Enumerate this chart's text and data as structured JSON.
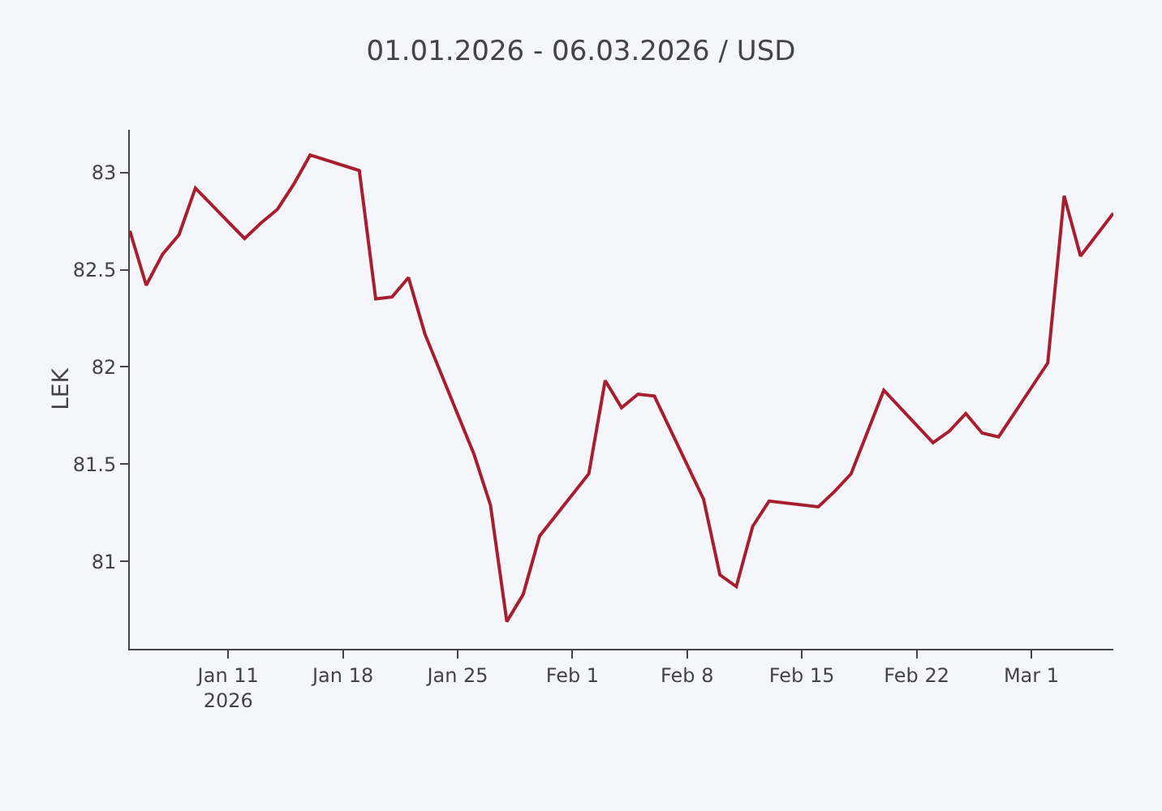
{
  "chart_data": {
    "type": "line",
    "title": "01.01.2026 - 06.03.2026 / USD",
    "ylabel": "LEK",
    "x": [
      "2026-01-05",
      "2026-01-06",
      "2026-01-07",
      "2026-01-08",
      "2026-01-09",
      "2026-01-12",
      "2026-01-13",
      "2026-01-14",
      "2026-01-15",
      "2026-01-16",
      "2026-01-19",
      "2026-01-20",
      "2026-01-21",
      "2026-01-22",
      "2026-01-23",
      "2026-01-26",
      "2026-01-27",
      "2026-01-28",
      "2026-01-29",
      "2026-01-30",
      "2026-02-02",
      "2026-02-03",
      "2026-02-04",
      "2026-02-05",
      "2026-02-06",
      "2026-02-09",
      "2026-02-10",
      "2026-02-11",
      "2026-02-12",
      "2026-02-13",
      "2026-02-16",
      "2026-02-17",
      "2026-02-18",
      "2026-02-20",
      "2026-02-23",
      "2026-02-24",
      "2026-02-25",
      "2026-02-26",
      "2026-02-27",
      "2026-03-02",
      "2026-03-03",
      "2026-03-04",
      "2026-03-06"
    ],
    "series": [
      {
        "color": "#a61e2f",
        "values": [
          82.7,
          82.42,
          82.58,
          82.68,
          82.92,
          82.66,
          82.74,
          82.81,
          82.94,
          83.09,
          83.01,
          82.35,
          82.36,
          82.46,
          82.17,
          81.55,
          81.29,
          80.69,
          80.83,
          81.13,
          81.45,
          81.93,
          81.79,
          81.86,
          81.85,
          81.32,
          80.93,
          80.87,
          81.18,
          81.31,
          81.28,
          81.36,
          81.45,
          81.88,
          81.61,
          81.67,
          81.76,
          81.66,
          81.64,
          82.02,
          82.88,
          82.57,
          82.79
        ]
      }
    ],
    "xlim": [
      "2026-01-05",
      "2026-03-06"
    ],
    "xticks": [
      {
        "value": "2026-01-11",
        "label": "Jan 11\n2026"
      },
      {
        "value": "2026-01-18",
        "label": "Jan 18"
      },
      {
        "value": "2026-01-25",
        "label": "Jan 25"
      },
      {
        "value": "2026-02-01",
        "label": "Feb 1"
      },
      {
        "value": "2026-02-08",
        "label": "Feb 8"
      },
      {
        "value": "2026-02-15",
        "label": "Feb 15"
      },
      {
        "value": "2026-02-22",
        "label": "Feb 22"
      },
      {
        "value": "2026-03-01",
        "label": "Mar 1"
      }
    ],
    "ylim": [
      80.55,
      83.22
    ],
    "yticks": [
      81,
      81.5,
      82,
      82.5,
      83
    ],
    "grid": false,
    "marker": "none",
    "line_style": "solid"
  }
}
